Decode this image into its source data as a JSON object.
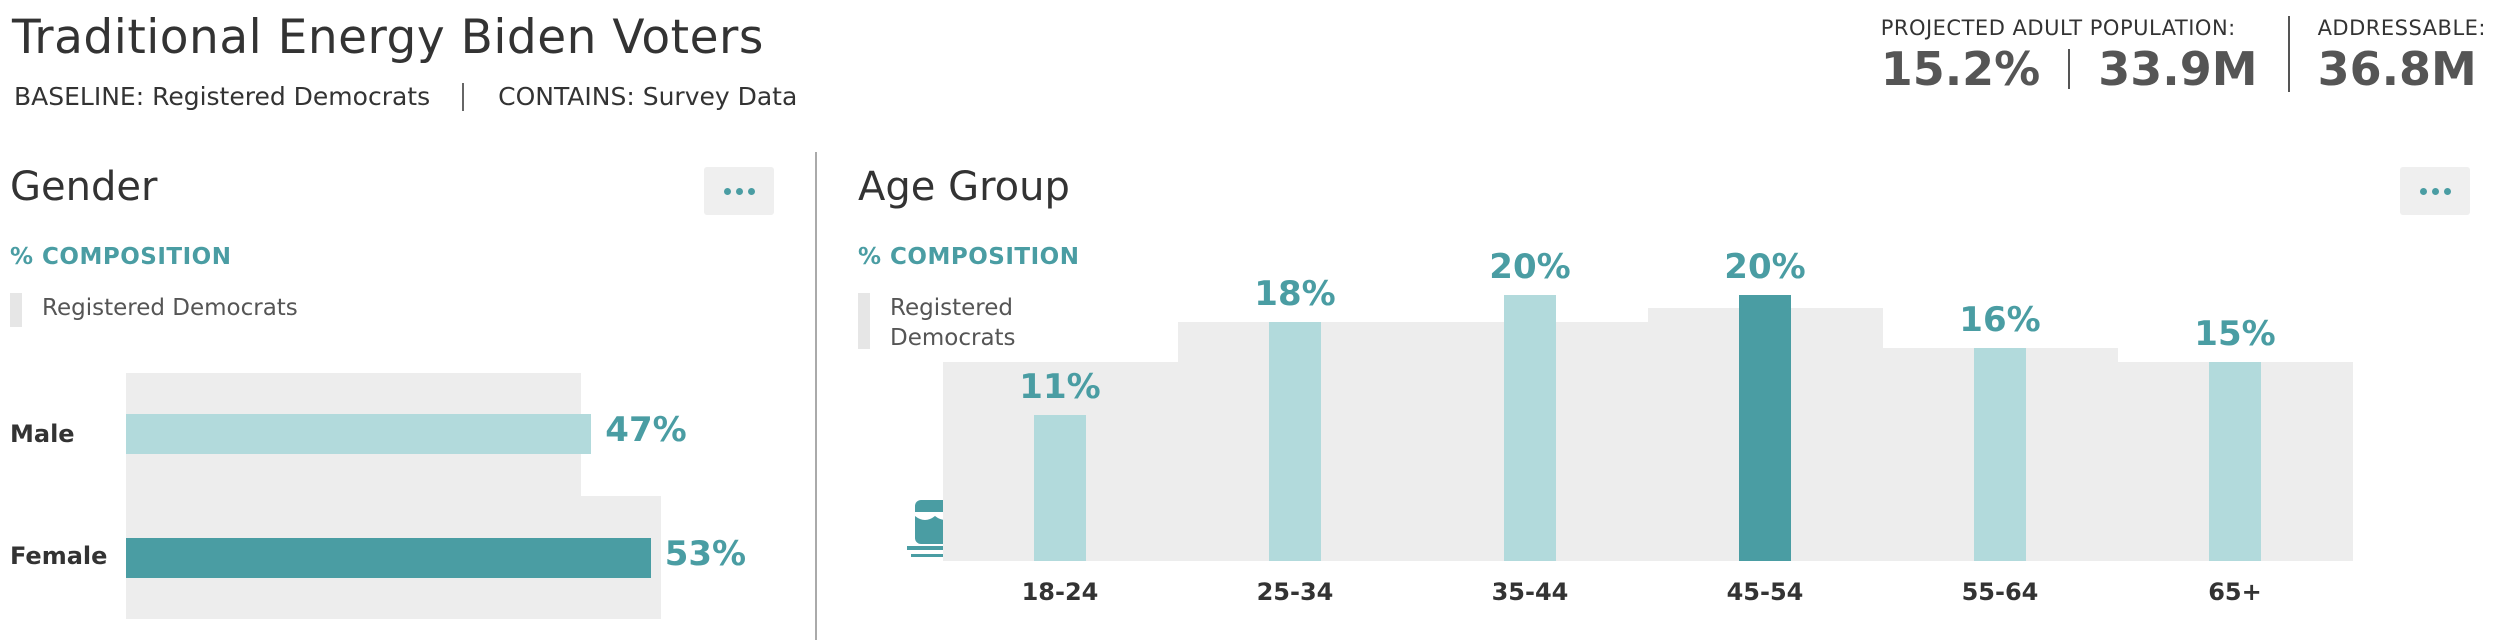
{
  "header": {
    "title": "Traditional Energy Biden Voters",
    "baseline": "BASELINE: Registered Democrats",
    "contains": "CONTAINS: Survey Data"
  },
  "stats": {
    "projected_label": "PROJECTED ADULT POPULATION:",
    "projected_pct": "15.2%",
    "projected_count": "33.9M",
    "addressable_label": "ADDRESSABLE:",
    "addressable_value": "36.8M"
  },
  "gender": {
    "title": "Gender",
    "composition_label": "% COMPOSITION",
    "legend": "Registered Democrats",
    "menu_icon": "more-horizontal-icon",
    "rows": [
      {
        "label": "Male",
        "value": 47,
        "value_label": "47%",
        "baseline": 46
      },
      {
        "label": "Female",
        "value": 53,
        "value_label": "53%",
        "baseline": 54
      }
    ],
    "colors": {
      "light": "#b2dadc",
      "dark": "#4a9da3",
      "baseline": "#ededed"
    }
  },
  "age": {
    "title": "Age Group",
    "composition_label": "% COMPOSITION",
    "legend_line1": "Registered",
    "legend_line2": "Democrats",
    "menu_icon": "more-horizontal-icon",
    "icon": "birthday-cake-icon",
    "highlight": "45-54"
  },
  "chart_data": {
    "type": "bar",
    "categories": [
      "18-24",
      "25-34",
      "35-44",
      "45-54",
      "55-64",
      "65+"
    ],
    "series": [
      {
        "name": "Traditional Energy Biden Voters",
        "values": [
          11,
          18,
          20,
          20,
          16,
          15
        ]
      },
      {
        "name": "Registered Democrats",
        "values": [
          15,
          18,
          18,
          19,
          16,
          15
        ]
      }
    ],
    "data_labels": [
      "11%",
      "18%",
      "20%",
      "20%",
      "16%",
      "15%"
    ],
    "ylim": [
      0,
      20
    ],
    "legend": "Registered Democrats"
  }
}
